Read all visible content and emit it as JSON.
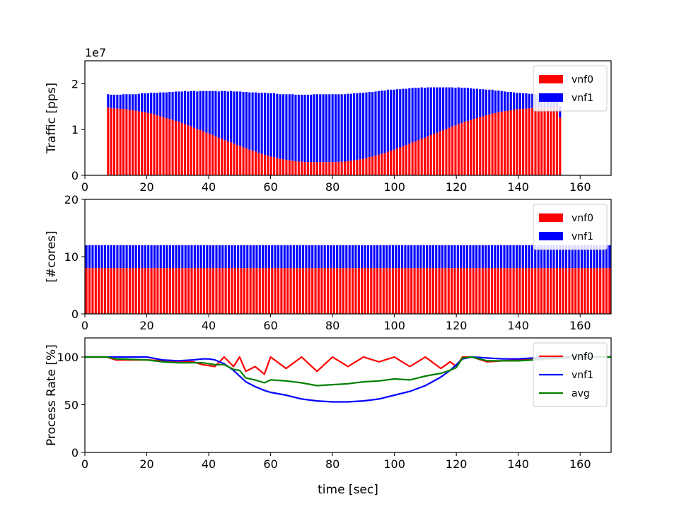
{
  "chart_data": [
    {
      "type": "bar",
      "stacked": true,
      "ylabel": "Traffic [pps]",
      "y_offset_label": "1e7",
      "xlim": [
        0,
        170
      ],
      "ylim": [
        0,
        2.5
      ],
      "xticks": [
        0,
        20,
        40,
        60,
        80,
        100,
        120,
        140,
        160
      ],
      "yticks": [
        0,
        1,
        2
      ],
      "legend_position": "upper-right",
      "x_start": 7,
      "x_end": 154,
      "series": [
        {
          "name": "vnf0",
          "color": "#ff0000",
          "values": [
            1.48,
            1.47,
            1.46,
            1.46,
            1.45,
            1.45,
            1.44,
            1.43,
            1.42,
            1.41,
            1.4,
            1.39,
            1.38,
            1.36,
            1.35,
            1.33,
            1.31,
            1.29,
            1.27,
            1.25,
            1.23,
            1.21,
            1.19,
            1.17,
            1.14,
            1.12,
            1.09,
            1.07,
            1.04,
            1.01,
            0.99,
            0.96,
            0.93,
            0.91,
            0.88,
            0.85,
            0.82,
            0.8,
            0.77,
            0.74,
            0.72,
            0.69,
            0.66,
            0.64,
            0.61,
            0.59,
            0.56,
            0.54,
            0.52,
            0.49,
            0.47,
            0.45,
            0.43,
            0.41,
            0.4,
            0.38,
            0.36,
            0.35,
            0.34,
            0.33,
            0.32,
            0.31,
            0.3,
            0.3,
            0.29,
            0.29,
            0.29,
            0.29,
            0.29,
            0.29,
            0.29,
            0.29,
            0.29,
            0.29,
            0.29,
            0.29,
            0.3,
            0.3,
            0.31,
            0.32,
            0.33,
            0.34,
            0.35,
            0.36,
            0.38,
            0.4,
            0.41,
            0.43,
            0.45,
            0.47,
            0.49,
            0.52,
            0.54,
            0.56,
            0.59,
            0.61,
            0.64,
            0.66,
            0.69,
            0.72,
            0.74,
            0.77,
            0.8,
            0.82,
            0.85,
            0.88,
            0.91,
            0.93,
            0.96,
            0.99,
            1.01,
            1.04,
            1.07,
            1.09,
            1.12,
            1.14,
            1.17,
            1.19,
            1.21,
            1.23,
            1.25,
            1.27,
            1.29,
            1.31,
            1.33,
            1.35,
            1.36,
            1.38,
            1.39,
            1.4,
            1.41,
            1.42,
            1.43,
            1.44,
            1.45,
            1.45,
            1.46,
            1.46,
            1.47,
            1.47,
            1.47,
            1.48,
            1.48,
            1.48,
            1.48,
            1.48,
            1.48,
            1.26
          ]
        },
        {
          "name": "vnf1",
          "color": "#0000ff",
          "values": [
            0.29,
            0.29,
            0.3,
            0.3,
            0.31,
            0.32,
            0.33,
            0.34,
            0.35,
            0.36,
            0.38,
            0.4,
            0.41,
            0.43,
            0.45,
            0.47,
            0.49,
            0.52,
            0.54,
            0.56,
            0.59,
            0.61,
            0.64,
            0.66,
            0.69,
            0.72,
            0.74,
            0.77,
            0.8,
            0.82,
            0.85,
            0.88,
            0.91,
            0.93,
            0.96,
            0.99,
            1.01,
            1.04,
            1.07,
            1.09,
            1.12,
            1.14,
            1.17,
            1.19,
            1.21,
            1.23,
            1.25,
            1.27,
            1.29,
            1.31,
            1.33,
            1.35,
            1.36,
            1.38,
            1.39,
            1.4,
            1.41,
            1.42,
            1.43,
            1.44,
            1.45,
            1.45,
            1.46,
            1.46,
            1.47,
            1.47,
            1.47,
            1.48,
            1.48,
            1.48,
            1.48,
            1.48,
            1.48,
            1.48,
            1.48,
            1.48,
            1.47,
            1.47,
            1.47,
            1.46,
            1.46,
            1.45,
            1.45,
            1.44,
            1.43,
            1.42,
            1.41,
            1.4,
            1.39,
            1.38,
            1.36,
            1.35,
            1.33,
            1.31,
            1.29,
            1.27,
            1.25,
            1.23,
            1.21,
            1.19,
            1.17,
            1.14,
            1.12,
            1.09,
            1.07,
            1.04,
            1.01,
            0.99,
            0.96,
            0.93,
            0.91,
            0.88,
            0.85,
            0.82,
            0.8,
            0.77,
            0.74,
            0.72,
            0.69,
            0.66,
            0.64,
            0.61,
            0.59,
            0.56,
            0.54,
            0.52,
            0.49,
            0.47,
            0.45,
            0.43,
            0.41,
            0.4,
            0.38,
            0.36,
            0.35,
            0.34,
            0.33,
            0.32,
            0.31,
            0.3,
            0.3,
            0.29,
            0.29,
            0.29,
            0.29,
            0.29,
            0.29,
            0.25
          ]
        }
      ]
    },
    {
      "type": "bar",
      "stacked": true,
      "ylabel": "[#cores]",
      "xlim": [
        0,
        170
      ],
      "ylim": [
        0,
        20
      ],
      "xticks": [
        0,
        20,
        40,
        60,
        80,
        100,
        120,
        140,
        160
      ],
      "yticks": [
        0,
        10,
        20
      ],
      "legend_position": "upper-right",
      "x_start": 0,
      "x_end": 170,
      "series": [
        {
          "name": "vnf0",
          "color": "#ff0000",
          "constant": 8
        },
        {
          "name": "vnf1",
          "color": "#0000ff",
          "constant": 4
        }
      ]
    },
    {
      "type": "line",
      "ylabel": "Process Rate [%]",
      "xlabel": "time [sec]",
      "xlim": [
        0,
        170
      ],
      "ylim": [
        0,
        120
      ],
      "xticks": [
        0,
        20,
        40,
        60,
        80,
        100,
        120,
        140,
        160
      ],
      "yticks": [
        0,
        50,
        100
      ],
      "legend_position": "upper-right",
      "x": [
        0,
        7,
        10,
        20,
        25,
        30,
        35,
        38,
        40,
        42,
        45,
        48,
        50,
        52,
        55,
        58,
        60,
        65,
        70,
        75,
        80,
        85,
        90,
        95,
        100,
        105,
        110,
        115,
        118,
        120,
        122,
        125,
        130,
        135,
        140,
        145,
        150,
        155,
        160,
        165,
        170
      ],
      "series": [
        {
          "name": "vnf0",
          "color": "#ff0000",
          "values": [
            100,
            100,
            97,
            97,
            96,
            95,
            95,
            92,
            91,
            90,
            100,
            90,
            100,
            85,
            90,
            82,
            100,
            88,
            100,
            85,
            100,
            90,
            100,
            95,
            100,
            90,
            100,
            88,
            95,
            90,
            100,
            100,
            95,
            96,
            97,
            98,
            99,
            100,
            100,
            100,
            100
          ]
        },
        {
          "name": "vnf1",
          "color": "#0000ff",
          "values": [
            100,
            100,
            100,
            100,
            97,
            96,
            97,
            98,
            98,
            97,
            93,
            86,
            80,
            74,
            69,
            65,
            63,
            60,
            56,
            54,
            53,
            53,
            54,
            56,
            60,
            64,
            70,
            79,
            86,
            92,
            98,
            100,
            99,
            98,
            98,
            99,
            99,
            100,
            100,
            100,
            100
          ]
        },
        {
          "name": "avg",
          "color": "#008000",
          "values": [
            100,
            100,
            98,
            97,
            95,
            94,
            94,
            94,
            93,
            92,
            92,
            87,
            86,
            78,
            76,
            73,
            76,
            75,
            73,
            70,
            71,
            72,
            74,
            75,
            77,
            76,
            80,
            83,
            86,
            89,
            99,
            100,
            96,
            96,
            96,
            97,
            98,
            99,
            100,
            100,
            100
          ]
        }
      ]
    }
  ]
}
